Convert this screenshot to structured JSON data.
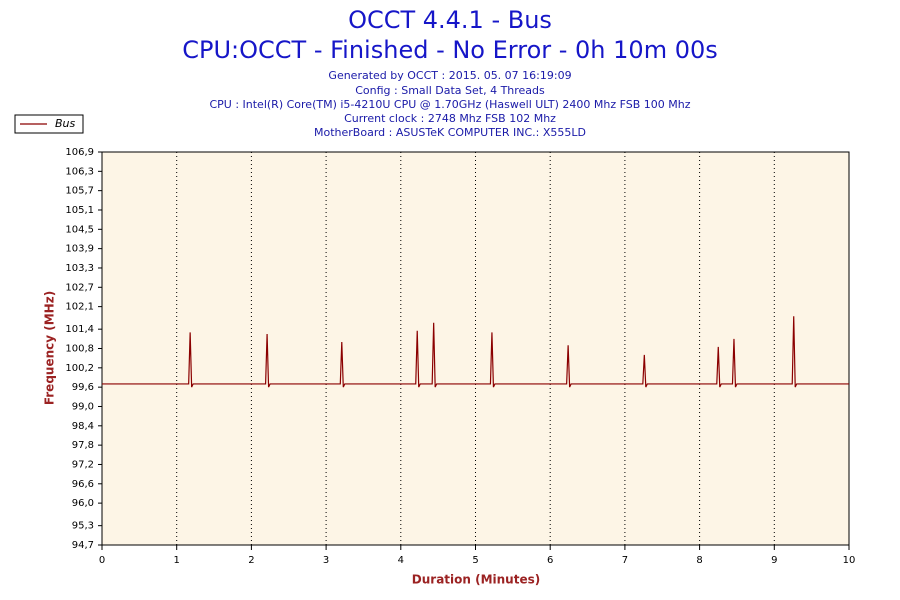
{
  "chart_data": {
    "type": "line",
    "title": "OCCT 4.4.1 - Bus",
    "subtitle": "CPU:OCCT - Finished - No Error - 0h 10m 00s",
    "info_lines": [
      "Generated by OCCT : 2015. 05. 07 16:19:09",
      "Config : Small Data Set, 4 Threads",
      "CPU : Intel(R) Core(TM) i5-4210U CPU @ 1.70GHz (Haswell ULT) 2400 Mhz FSB 100 Mhz",
      "Current clock : 2748 Mhz FSB 102 Mhz",
      "MotherBoard : ASUSTeK COMPUTER INC.: X555LD"
    ],
    "x_label": "Duration (Minutes)",
    "y_label": "Frequency (MHz)",
    "legend": "top-left",
    "grid": true,
    "xlim": [
      0,
      10
    ],
    "xticks": [
      0,
      1,
      2,
      3,
      4,
      5,
      6,
      7,
      8,
      9,
      10
    ],
    "ylim": [
      94.7,
      106.9
    ],
    "yticks": [
      {
        "value": 94.7,
        "label": "94,7"
      },
      {
        "value": 95.3,
        "label": "95,3"
      },
      {
        "value": 96.0,
        "label": "96,0"
      },
      {
        "value": 96.6,
        "label": "96,6"
      },
      {
        "value": 97.2,
        "label": "97,2"
      },
      {
        "value": 97.8,
        "label": "97,8"
      },
      {
        "value": 98.4,
        "label": "98,4"
      },
      {
        "value": 99.0,
        "label": "99,0"
      },
      {
        "value": 99.6,
        "label": "99,6"
      },
      {
        "value": 100.2,
        "label": "100,2"
      },
      {
        "value": 100.8,
        "label": "100,8"
      },
      {
        "value": 101.4,
        "label": "101,4"
      },
      {
        "value": 102.1,
        "label": "102,1"
      },
      {
        "value": 102.7,
        "label": "102,7"
      },
      {
        "value": 103.3,
        "label": "103,3"
      },
      {
        "value": 103.9,
        "label": "103,9"
      },
      {
        "value": 104.5,
        "label": "104,5"
      },
      {
        "value": 105.1,
        "label": "105,1"
      },
      {
        "value": 105.7,
        "label": "105,7"
      },
      {
        "value": 106.3,
        "label": "106,3"
      },
      {
        "value": 106.9,
        "label": "106,9"
      }
    ],
    "x": [
      0,
      1.16,
      1.18,
      1.2,
      1.22,
      2.19,
      2.21,
      2.23,
      2.25,
      3.19,
      3.21,
      3.23,
      3.25,
      4.2,
      4.22,
      4.24,
      4.26,
      4.42,
      4.44,
      4.46,
      4.48,
      5.2,
      5.22,
      5.24,
      5.26,
      6.22,
      6.24,
      6.26,
      6.28,
      7.24,
      7.26,
      7.28,
      7.3,
      8.23,
      8.25,
      8.27,
      8.29,
      8.44,
      8.46,
      8.48,
      8.5,
      9.24,
      9.26,
      9.28,
      9.3,
      10
    ],
    "series": [
      {
        "name": "Bus",
        "color": "#8b0000",
        "values": [
          99.7,
          99.7,
          101.3,
          99.6,
          99.7,
          99.7,
          101.25,
          99.6,
          99.7,
          99.7,
          101.0,
          99.6,
          99.7,
          99.7,
          101.35,
          99.6,
          99.7,
          99.7,
          101.6,
          99.6,
          99.7,
          99.7,
          101.3,
          99.6,
          99.7,
          99.7,
          100.9,
          99.6,
          99.7,
          99.7,
          100.6,
          99.6,
          99.7,
          99.7,
          100.85,
          99.6,
          99.7,
          99.7,
          101.1,
          99.6,
          99.7,
          99.7,
          101.8,
          99.6,
          99.7,
          99.7
        ]
      }
    ]
  }
}
